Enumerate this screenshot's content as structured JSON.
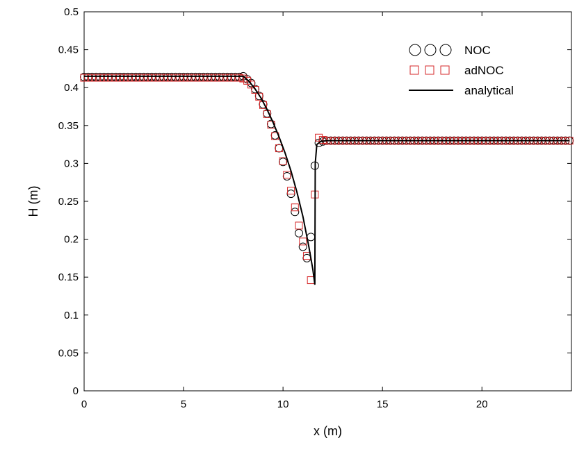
{
  "chart_data": {
    "type": "line",
    "xlabel": "x (m)",
    "ylabel": "H (m)",
    "xlim": [
      0,
      24.5
    ],
    "ylim": [
      0,
      0.5
    ],
    "xticks": [
      "0",
      "5",
      "10",
      "15",
      "20"
    ],
    "yticks": [
      "0",
      "0.05",
      "0.1",
      "0.15",
      "0.2",
      "0.25",
      "0.3",
      "0.35",
      "0.4",
      "0.45",
      "0.5"
    ],
    "grid": false,
    "legend_position": "top-right",
    "series": [
      {
        "name": "NOC",
        "style": "circle-markers",
        "color": "#000000",
        "x": [
          0,
          0.2,
          0.4,
          0.6,
          0.8,
          1.0,
          1.2,
          1.4,
          1.6,
          1.8,
          2.0,
          2.2,
          2.4,
          2.6,
          2.8,
          3.0,
          3.2,
          3.4,
          3.6,
          3.8,
          4.0,
          4.2,
          4.4,
          4.6,
          4.8,
          5.0,
          5.2,
          5.4,
          5.6,
          5.8,
          6.0,
          6.2,
          6.4,
          6.6,
          6.8,
          7.0,
          7.2,
          7.4,
          7.6,
          7.8,
          8.0,
          8.2,
          8.4,
          8.6,
          8.8,
          9.0,
          9.2,
          9.4,
          9.6,
          9.8,
          10.0,
          10.2,
          10.4,
          10.6,
          10.8,
          11.0,
          11.2,
          11.4,
          11.6,
          11.8,
          12.0,
          12.2,
          12.4,
          12.6,
          12.8,
          13.0,
          13.2,
          13.4,
          13.6,
          13.8,
          14.0,
          14.2,
          14.4,
          14.6,
          14.8,
          15.0,
          15.2,
          15.4,
          15.6,
          15.8,
          16.0,
          16.2,
          16.4,
          16.6,
          16.8,
          17.0,
          17.2,
          17.4,
          17.6,
          17.8,
          18.0,
          18.2,
          18.4,
          18.6,
          18.8,
          19.0,
          19.2,
          19.4,
          19.6,
          19.8,
          20.0,
          20.2,
          20.4,
          20.6,
          20.8,
          21.0,
          21.2,
          21.4,
          21.6,
          21.8,
          22.0,
          22.2,
          22.4,
          22.6,
          22.8,
          23.0,
          23.2,
          23.4,
          23.6,
          23.8,
          24.0,
          24.2,
          24.4
        ],
        "y": [
          0.414,
          0.414,
          0.414,
          0.414,
          0.414,
          0.414,
          0.414,
          0.414,
          0.414,
          0.414,
          0.414,
          0.414,
          0.414,
          0.414,
          0.414,
          0.414,
          0.414,
          0.414,
          0.414,
          0.414,
          0.414,
          0.414,
          0.414,
          0.414,
          0.414,
          0.414,
          0.414,
          0.414,
          0.414,
          0.414,
          0.414,
          0.414,
          0.414,
          0.414,
          0.414,
          0.414,
          0.414,
          0.414,
          0.414,
          0.414,
          0.415,
          0.411,
          0.406,
          0.398,
          0.389,
          0.378,
          0.366,
          0.352,
          0.337,
          0.32,
          0.302,
          0.283,
          0.26,
          0.236,
          0.208,
          0.19,
          0.175,
          0.203,
          0.297,
          0.327,
          0.329,
          0.33,
          0.33,
          0.33,
          0.33,
          0.33,
          0.33,
          0.33,
          0.33,
          0.33,
          0.33,
          0.33,
          0.33,
          0.33,
          0.33,
          0.33,
          0.33,
          0.33,
          0.33,
          0.33,
          0.33,
          0.33,
          0.33,
          0.33,
          0.33,
          0.33,
          0.33,
          0.33,
          0.33,
          0.33,
          0.33,
          0.33,
          0.33,
          0.33,
          0.33,
          0.33,
          0.33,
          0.33,
          0.33,
          0.33,
          0.33,
          0.33,
          0.33,
          0.33,
          0.33,
          0.33,
          0.33,
          0.33,
          0.33,
          0.33,
          0.33,
          0.33,
          0.33,
          0.33,
          0.33,
          0.33,
          0.33,
          0.33,
          0.33,
          0.33,
          0.33,
          0.33,
          0.33
        ]
      },
      {
        "name": "adNOC",
        "style": "square-markers",
        "color": "#d62728",
        "x": [
          0,
          0.2,
          0.4,
          0.6,
          0.8,
          1.0,
          1.2,
          1.4,
          1.6,
          1.8,
          2.0,
          2.2,
          2.4,
          2.6,
          2.8,
          3.0,
          3.2,
          3.4,
          3.6,
          3.8,
          4.0,
          4.2,
          4.4,
          4.6,
          4.8,
          5.0,
          5.2,
          5.4,
          5.6,
          5.8,
          6.0,
          6.2,
          6.4,
          6.6,
          6.8,
          7.0,
          7.2,
          7.4,
          7.6,
          7.8,
          8.0,
          8.2,
          8.4,
          8.6,
          8.8,
          9.0,
          9.2,
          9.4,
          9.6,
          9.8,
          10.0,
          10.2,
          10.4,
          10.6,
          10.8,
          11.0,
          11.2,
          11.4,
          11.6,
          11.8,
          12.0,
          12.2,
          12.4,
          12.6,
          12.8,
          13.0,
          13.2,
          13.4,
          13.6,
          13.8,
          14.0,
          14.2,
          14.4,
          14.6,
          14.8,
          15.0,
          15.2,
          15.4,
          15.6,
          15.8,
          16.0,
          16.2,
          16.4,
          16.6,
          16.8,
          17.0,
          17.2,
          17.4,
          17.6,
          17.8,
          18.0,
          18.2,
          18.4,
          18.6,
          18.8,
          19.0,
          19.2,
          19.4,
          19.6,
          19.8,
          20.0,
          20.2,
          20.4,
          20.6,
          20.8,
          21.0,
          21.2,
          21.4,
          21.6,
          21.8,
          22.0,
          22.2,
          22.4,
          22.6,
          22.8,
          23.0,
          23.2,
          23.4,
          23.6,
          23.8,
          24.0,
          24.2,
          24.4
        ],
        "y": [
          0.413,
          0.413,
          0.413,
          0.413,
          0.413,
          0.413,
          0.413,
          0.413,
          0.413,
          0.413,
          0.413,
          0.413,
          0.413,
          0.413,
          0.413,
          0.413,
          0.413,
          0.413,
          0.413,
          0.413,
          0.413,
          0.413,
          0.413,
          0.413,
          0.413,
          0.413,
          0.413,
          0.413,
          0.413,
          0.413,
          0.413,
          0.413,
          0.413,
          0.413,
          0.413,
          0.413,
          0.413,
          0.413,
          0.413,
          0.413,
          0.412,
          0.409,
          0.404,
          0.397,
          0.388,
          0.377,
          0.365,
          0.351,
          0.336,
          0.32,
          0.303,
          0.285,
          0.264,
          0.242,
          0.218,
          0.197,
          0.178,
          0.146,
          0.259,
          0.334,
          0.331,
          0.33,
          0.33,
          0.33,
          0.33,
          0.33,
          0.33,
          0.33,
          0.33,
          0.33,
          0.33,
          0.33,
          0.33,
          0.33,
          0.33,
          0.33,
          0.33,
          0.33,
          0.33,
          0.33,
          0.33,
          0.33,
          0.33,
          0.33,
          0.33,
          0.33,
          0.33,
          0.33,
          0.33,
          0.33,
          0.33,
          0.33,
          0.33,
          0.33,
          0.33,
          0.33,
          0.33,
          0.33,
          0.33,
          0.33,
          0.33,
          0.33,
          0.33,
          0.33,
          0.33,
          0.33,
          0.33,
          0.33,
          0.33,
          0.33,
          0.33,
          0.33,
          0.33,
          0.33,
          0.33,
          0.33,
          0.33,
          0.33,
          0.33,
          0.33,
          0.33,
          0.33,
          0.33
        ]
      },
      {
        "name": "analytical",
        "style": "solid-line",
        "color": "#000000",
        "x": [
          0,
          8.0,
          8.3,
          8.6,
          8.9,
          9.2,
          9.5,
          9.8,
          10.1,
          10.4,
          10.7,
          11.0,
          11.3,
          11.5,
          11.6,
          11.62,
          11.7,
          11.9,
          12.2,
          24.4
        ],
        "y": [
          0.415,
          0.415,
          0.408,
          0.398,
          0.386,
          0.371,
          0.354,
          0.335,
          0.314,
          0.29,
          0.262,
          0.23,
          0.19,
          0.16,
          0.14,
          0.3,
          0.325,
          0.329,
          0.33,
          0.33
        ]
      }
    ]
  }
}
